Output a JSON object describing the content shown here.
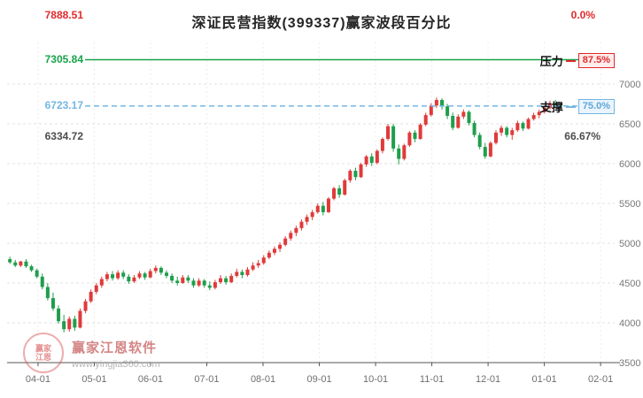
{
  "page": {
    "title": "深证民营指数(399337)赢家波段百分比"
  },
  "levels": {
    "top": {
      "price_text": "7888.51",
      "pct": "0.0%"
    },
    "pressure": {
      "label": "压力",
      "price_text": "7305.84",
      "pct": "87.5%"
    },
    "support": {
      "label": "支撑",
      "price_text": "6723.17",
      "pct": "75.0%"
    },
    "mid": {
      "price_text": "6334.72",
      "pct": "66.67%"
    }
  },
  "watermark": {
    "logo_line1": "赢家",
    "logo_line2": "江恩",
    "brand": "赢家江恩软件",
    "url": "www.yingjia360.com"
  },
  "chart_data": {
    "type": "candlestick",
    "title": "深证民营指数(399337)赢家波段百分比",
    "ylim": [
      3500,
      7000
    ],
    "y_ticks": [
      7000,
      6500,
      6000,
      5500,
      5000,
      4500,
      4000,
      3500
    ],
    "x_ticks": [
      {
        "label": "04-01",
        "m": 4
      },
      {
        "label": "05-01",
        "m": 5
      },
      {
        "label": "06-01",
        "m": 6
      },
      {
        "label": "07-01",
        "m": 7
      },
      {
        "label": "08-01",
        "m": 8
      },
      {
        "label": "09-01",
        "m": 9
      },
      {
        "label": "10-01",
        "m": 10
      },
      {
        "label": "11-01",
        "m": 11
      },
      {
        "label": "12-01",
        "m": 12
      },
      {
        "label": "01-01",
        "m": 13
      },
      {
        "label": "02-01",
        "m": 14
      }
    ],
    "xlim_months": [
      3.45,
      14.25
    ],
    "candle_start_m": 3.5,
    "candle_step_m": 0.096,
    "colors": {
      "up": "#e03a3a",
      "down": "#1f9e4c",
      "grid": "#e2e2e2",
      "vgrid": "#ececec",
      "axis": "#555555",
      "tick_text": "#787878"
    },
    "level_lines": [
      {
        "price": 7305.84,
        "color": "#18a34a",
        "dash": ""
      },
      {
        "price": 6723.17,
        "color": "#74b6e2",
        "dash": "6,4"
      }
    ],
    "layout": {
      "left": 8,
      "right": 694,
      "y7000": 95,
      "y3500": 410,
      "grid_top": 48
    },
    "candles": [
      [
        4800,
        4830,
        4740,
        4760
      ],
      [
        4760,
        4790,
        4700,
        4720
      ],
      [
        4720,
        4780,
        4700,
        4770
      ],
      [
        4770,
        4800,
        4690,
        4710
      ],
      [
        4710,
        4730,
        4640,
        4660
      ],
      [
        4660,
        4680,
        4560,
        4580
      ],
      [
        4580,
        4620,
        4420,
        4450
      ],
      [
        4450,
        4500,
        4280,
        4310
      ],
      [
        4310,
        4380,
        4150,
        4180
      ],
      [
        4180,
        4220,
        3990,
        4020
      ],
      [
        4020,
        4100,
        3880,
        3920
      ],
      [
        3920,
        4080,
        3890,
        4050
      ],
      [
        4050,
        4090,
        3900,
        3940
      ],
      [
        3940,
        4180,
        3930,
        4150
      ],
      [
        4150,
        4300,
        4120,
        4270
      ],
      [
        4270,
        4420,
        4250,
        4390
      ],
      [
        4390,
        4500,
        4360,
        4470
      ],
      [
        4470,
        4580,
        4440,
        4550
      ],
      [
        4550,
        4640,
        4520,
        4610
      ],
      [
        4610,
        4650,
        4530,
        4560
      ],
      [
        4560,
        4660,
        4540,
        4630
      ],
      [
        4630,
        4660,
        4550,
        4580
      ],
      [
        4580,
        4610,
        4490,
        4520
      ],
      [
        4520,
        4600,
        4500,
        4570
      ],
      [
        4570,
        4650,
        4550,
        4620
      ],
      [
        4620,
        4640,
        4540,
        4570
      ],
      [
        4570,
        4680,
        4560,
        4650
      ],
      [
        4650,
        4720,
        4620,
        4690
      ],
      [
        4690,
        4710,
        4600,
        4630
      ],
      [
        4630,
        4660,
        4560,
        4590
      ],
      [
        4590,
        4620,
        4500,
        4530
      ],
      [
        4530,
        4580,
        4470,
        4500
      ],
      [
        4500,
        4600,
        4490,
        4570
      ],
      [
        4570,
        4600,
        4500,
        4530
      ],
      [
        4530,
        4560,
        4440,
        4470
      ],
      [
        4470,
        4560,
        4450,
        4530
      ],
      [
        4530,
        4550,
        4440,
        4470
      ],
      [
        4470,
        4520,
        4410,
        4440
      ],
      [
        4440,
        4540,
        4420,
        4510
      ],
      [
        4510,
        4600,
        4490,
        4560
      ],
      [
        4560,
        4590,
        4480,
        4510
      ],
      [
        4510,
        4620,
        4500,
        4590
      ],
      [
        4590,
        4680,
        4570,
        4640
      ],
      [
        4640,
        4670,
        4560,
        4600
      ],
      [
        4600,
        4700,
        4580,
        4670
      ],
      [
        4670,
        4760,
        4650,
        4720
      ],
      [
        4720,
        4790,
        4690,
        4750
      ],
      [
        4750,
        4850,
        4730,
        4820
      ],
      [
        4820,
        4910,
        4800,
        4880
      ],
      [
        4880,
        4960,
        4850,
        4930
      ],
      [
        4930,
        5010,
        4890,
        4980
      ],
      [
        4980,
        5090,
        4960,
        5060
      ],
      [
        5060,
        5160,
        5030,
        5130
      ],
      [
        5130,
        5220,
        5090,
        5190
      ],
      [
        5190,
        5300,
        5160,
        5270
      ],
      [
        5270,
        5360,
        5230,
        5330
      ],
      [
        5330,
        5420,
        5290,
        5390
      ],
      [
        5390,
        5500,
        5370,
        5470
      ],
      [
        5470,
        5520,
        5350,
        5390
      ],
      [
        5390,
        5580,
        5380,
        5560
      ],
      [
        5560,
        5710,
        5540,
        5690
      ],
      [
        5690,
        5730,
        5570,
        5610
      ],
      [
        5610,
        5810,
        5600,
        5790
      ],
      [
        5790,
        5930,
        5760,
        5910
      ],
      [
        5910,
        5950,
        5790,
        5830
      ],
      [
        5830,
        6010,
        5820,
        5990
      ],
      [
        5990,
        6110,
        5960,
        6090
      ],
      [
        6090,
        6130,
        5970,
        6010
      ],
      [
        6010,
        6180,
        5990,
        6160
      ],
      [
        6160,
        6330,
        6130,
        6310
      ],
      [
        6310,
        6500,
        6290,
        6470
      ],
      [
        6470,
        6500,
        6150,
        6190
      ],
      [
        6190,
        6240,
        5990,
        6060
      ],
      [
        6060,
        6250,
        6040,
        6230
      ],
      [
        6230,
        6410,
        6210,
        6390
      ],
      [
        6390,
        6420,
        6270,
        6310
      ],
      [
        6310,
        6510,
        6300,
        6490
      ],
      [
        6490,
        6640,
        6470,
        6610
      ],
      [
        6610,
        6760,
        6590,
        6730
      ],
      [
        6730,
        6830,
        6700,
        6800
      ],
      [
        6800,
        6820,
        6680,
        6720
      ],
      [
        6720,
        6750,
        6560,
        6600
      ],
      [
        6600,
        6640,
        6420,
        6450
      ],
      [
        6450,
        6620,
        6440,
        6590
      ],
      [
        6590,
        6680,
        6560,
        6650
      ],
      [
        6650,
        6670,
        6480,
        6510
      ],
      [
        6510,
        6540,
        6330,
        6360
      ],
      [
        6360,
        6390,
        6180,
        6210
      ],
      [
        6210,
        6260,
        6060,
        6090
      ],
      [
        6090,
        6280,
        6080,
        6260
      ],
      [
        6260,
        6420,
        6240,
        6390
      ],
      [
        6390,
        6480,
        6350,
        6450
      ],
      [
        6450,
        6470,
        6330,
        6360
      ],
      [
        6360,
        6450,
        6300,
        6420
      ],
      [
        6420,
        6540,
        6400,
        6510
      ],
      [
        6510,
        6530,
        6410,
        6440
      ],
      [
        6440,
        6580,
        6430,
        6560
      ],
      [
        6560,
        6640,
        6540,
        6610
      ],
      [
        6610,
        6680,
        6570,
        6650
      ],
      [
        6650,
        6730,
        6630,
        6700
      ],
      [
        6700,
        6790,
        6680,
        6760
      ],
      [
        6760,
        6800,
        6700,
        6730
      ],
      [
        6730,
        6760,
        6680,
        6723
      ]
    ]
  }
}
